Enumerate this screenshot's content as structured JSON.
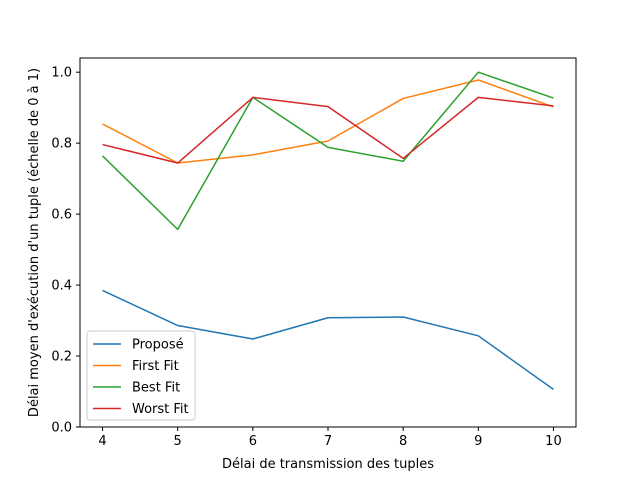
{
  "chart_data": {
    "type": "line",
    "title": "",
    "xlabel": "Délai de transmission des tuples",
    "ylabel": "Délai moyen d'exécution d'un tuple (échelle de 0 à 1)",
    "x": [
      4,
      5,
      6,
      7,
      8,
      9,
      10
    ],
    "xlim": [
      3.7,
      10.3
    ],
    "ylim": [
      0.0,
      1.04
    ],
    "xticks": [
      "4",
      "5",
      "6",
      "7",
      "8",
      "9",
      "10"
    ],
    "yticks": [
      {
        "value": 0.0,
        "label": "0.0"
      },
      {
        "value": 0.2,
        "label": "0.2"
      },
      {
        "value": 0.4,
        "label": "0.4"
      },
      {
        "value": 0.6,
        "label": "0.6"
      },
      {
        "value": 0.8,
        "label": "0.8"
      },
      {
        "value": 1.0,
        "label": "1.0"
      }
    ],
    "grid": false,
    "legend": "lower-left",
    "series": [
      {
        "name": "Proposé",
        "color": "#1f77b4",
        "values": [
          0.385,
          0.286,
          0.248,
          0.308,
          0.31,
          0.257,
          0.106
        ]
      },
      {
        "name": "First Fit",
        "color": "#ff7f0e",
        "values": [
          0.854,
          0.744,
          0.767,
          0.806,
          0.926,
          0.978,
          0.902
        ]
      },
      {
        "name": "Best Fit",
        "color": "#2ca02c",
        "values": [
          0.764,
          0.557,
          0.929,
          0.788,
          0.749,
          1.0,
          0.927
        ]
      },
      {
        "name": "Worst Fit",
        "color": "#d62728",
        "values": [
          0.796,
          0.744,
          0.929,
          0.903,
          0.757,
          0.929,
          0.905
        ]
      }
    ]
  }
}
